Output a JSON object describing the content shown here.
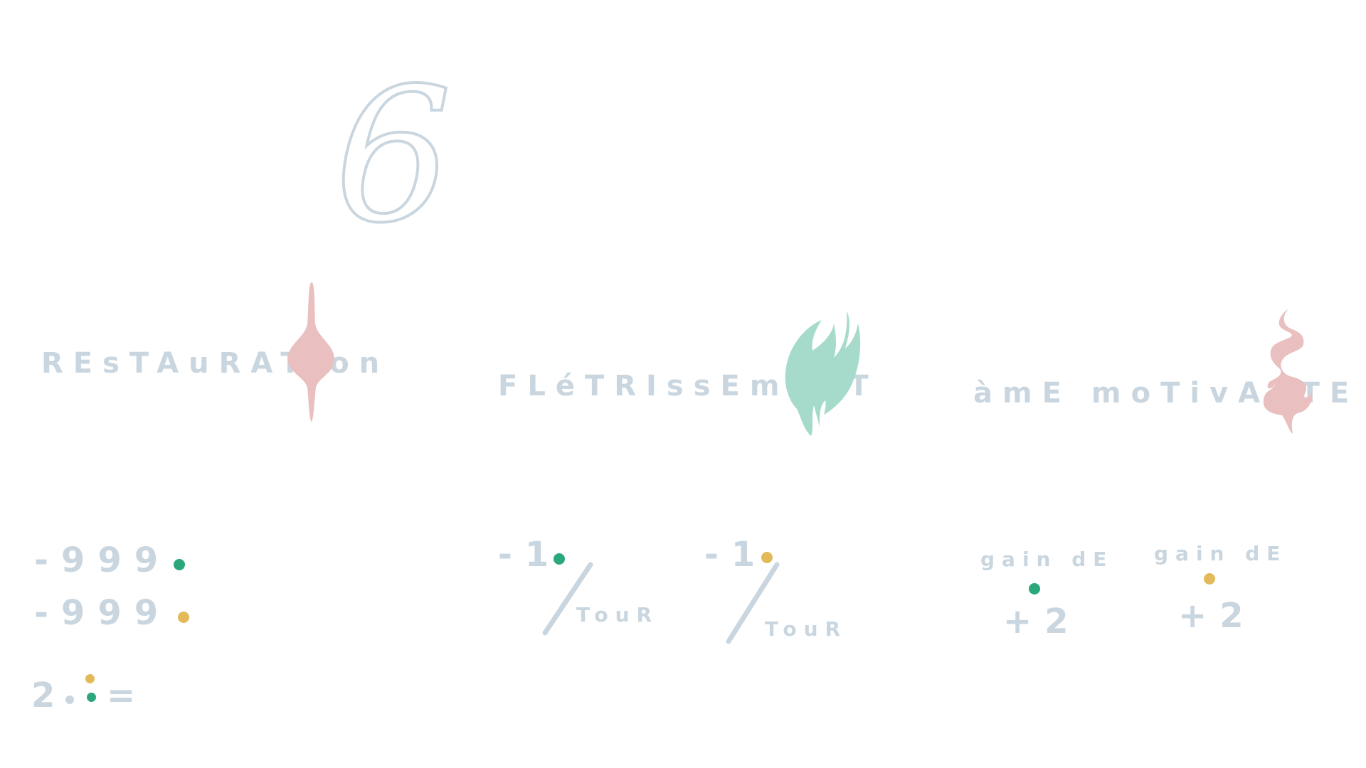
{
  "number": "6",
  "colors": {
    "ink": "#c9d6df",
    "pink": "#eabfc0",
    "mint": "#a6dbcb",
    "green": "#2aa87b",
    "gold": "#e3ba59"
  },
  "cards": [
    {
      "title": "REsTAuRATion",
      "icon": "pink-drop-icon",
      "lines": [
        "-999",
        "-999"
      ],
      "formula": "2",
      "equals": "="
    },
    {
      "title": "FLéTRIssEmEnT",
      "icon": "mint-flame-icon",
      "rate_left": "-1",
      "rate_right": "-1",
      "per": "TouR"
    },
    {
      "title": "àmE moTivAnTE",
      "icon": "pink-smoke-icon",
      "gain_label": "gain dE",
      "gain_value": "+2"
    }
  ]
}
